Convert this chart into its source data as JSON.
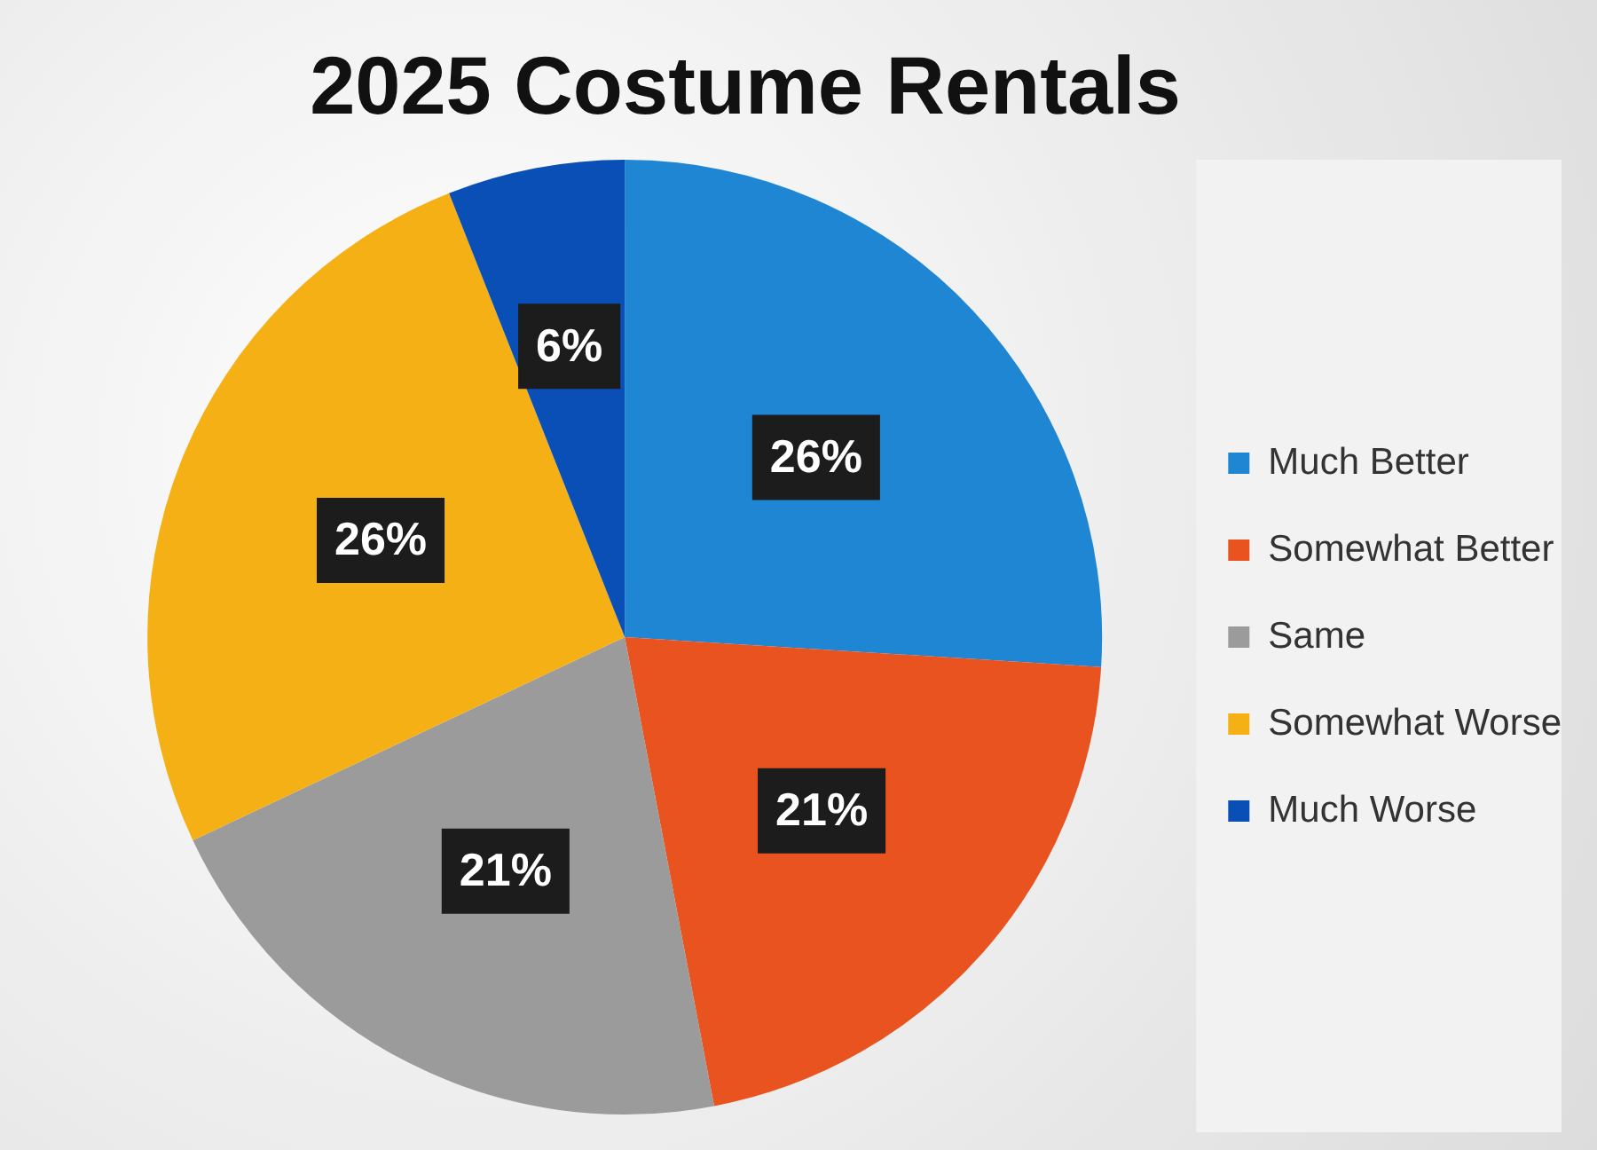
{
  "chart_data": {
    "type": "pie",
    "title": "2025 Costume Rentals",
    "categories": [
      "Much Better",
      "Somewhat Better",
      "Same",
      "Somewhat Worse",
      "Much Worse"
    ],
    "values": [
      26,
      21,
      21,
      26,
      6
    ],
    "colors": [
      "#1f86d4",
      "#e8531f",
      "#9b9b9b",
      "#f5b016",
      "#0a4fb5"
    ],
    "value_labels": [
      "26%",
      "21%",
      "21%",
      "26%",
      "6%"
    ],
    "legend": "right"
  }
}
